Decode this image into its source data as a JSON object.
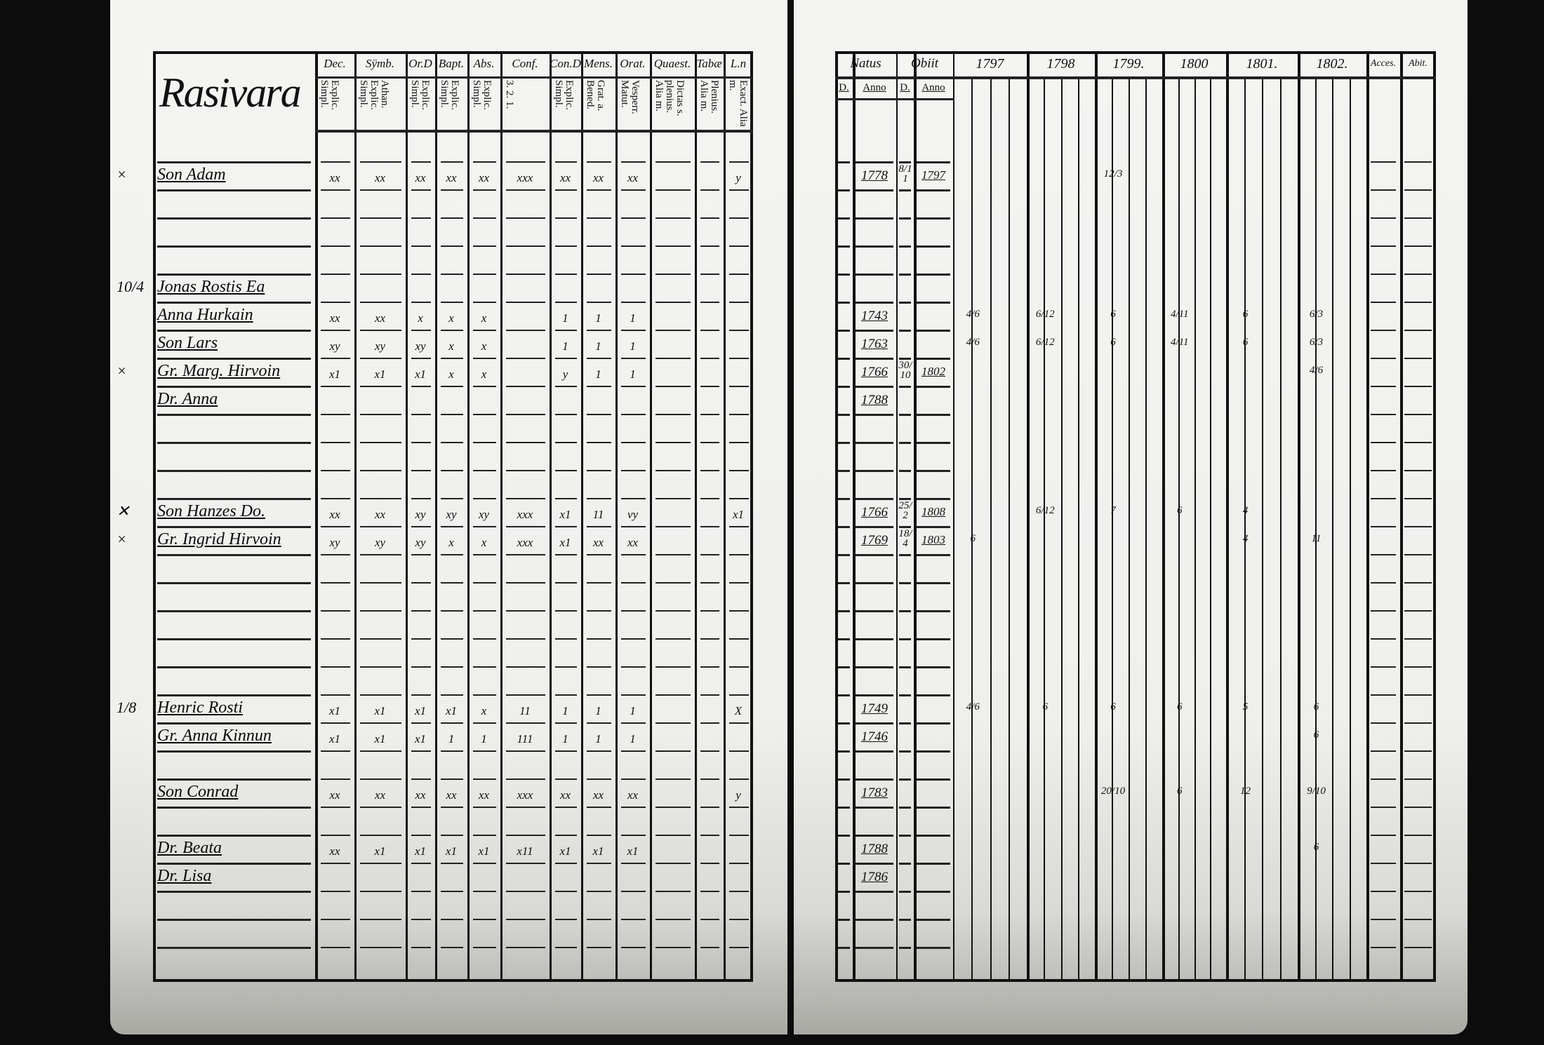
{
  "left_page": {
    "title": "Rasivara",
    "columns": [
      {
        "head": "Dec.",
        "sub": "Explic. Simpl."
      },
      {
        "head": "Sÿmb.",
        "sub": "Athan. Explic. Simpl."
      },
      {
        "head": "Or.D",
        "sub": "Explic. Simpl."
      },
      {
        "head": "Bapt.",
        "sub": "Explic. Simpl."
      },
      {
        "head": "Abs.",
        "sub": "Explic. Simpl."
      },
      {
        "head": "Conf.",
        "sub": "3. 2. 1."
      },
      {
        "head": "Con.D",
        "sub": "Explic. Simpl."
      },
      {
        "head": "Mens.",
        "sub": "Grat. a. Bened."
      },
      {
        "head": "Orat.",
        "sub": "Vesperr. Matut."
      },
      {
        "head": "Quaest.",
        "sub": "Dictas s. plenius. Alia m."
      },
      {
        "head": "Tabæ",
        "sub": "Plenius. Alia m."
      },
      {
        "head": "L.n",
        "sub": "Exact. Alia m."
      }
    ],
    "persons": [
      {
        "margin": "×",
        "name": "Son Adam",
        "marks": [
          "xx",
          "xx",
          "xx",
          "xx",
          "xx",
          "xxx",
          "xx",
          "xx",
          "xx",
          "",
          "",
          "y"
        ]
      },
      {
        "margin": "10/4",
        "name": "Jonas Rostis Ea",
        "marks": [
          "",
          "",
          "",
          "",
          "",
          "",
          "",
          "",
          "",
          "",
          "",
          ""
        ]
      },
      {
        "margin": "",
        "name": "Anna Hurkain",
        "marks": [
          "xx",
          "xx",
          "x",
          "x",
          "x",
          "",
          "1",
          "1",
          "1",
          "",
          "",
          ""
        ]
      },
      {
        "margin": "",
        "name": "Son Lars",
        "marks": [
          "xy",
          "xy",
          "xy",
          "x",
          "x",
          "",
          "1",
          "1",
          "1",
          "",
          "",
          ""
        ]
      },
      {
        "margin": "×",
        "name": "Gr. Marg. Hirvoin",
        "marks": [
          "x1",
          "x1",
          "x1",
          "x",
          "x",
          "",
          "y",
          "1",
          "1",
          "",
          "",
          ""
        ]
      },
      {
        "margin": "",
        "name": "Dr. Anna",
        "marks": [
          "",
          "",
          "",
          "",
          "",
          "",
          "",
          "",
          "",
          "",
          "",
          ""
        ]
      },
      {
        "margin": "✕",
        "name": "Son Hanzes Do.",
        "marks": [
          "xx",
          "xx",
          "xy",
          "xy",
          "xy",
          "xxx",
          "x1",
          "11",
          "vy",
          "",
          "",
          "x1"
        ]
      },
      {
        "margin": "×",
        "name": "Gr. Ingrid Hirvoin",
        "marks": [
          "xy",
          "xy",
          "xy",
          "x",
          "x",
          "xxx",
          "x1",
          "xx",
          "xx",
          "",
          "",
          ""
        ]
      },
      {
        "margin": "1/8",
        "name": "Henric Rosti",
        "marks": [
          "x1",
          "x1",
          "x1",
          "x1",
          "x",
          "11",
          "1",
          "1",
          "1",
          "",
          "",
          "X"
        ]
      },
      {
        "margin": "",
        "name": "Gr. Anna Kinnun",
        "marks": [
          "x1",
          "x1",
          "x1",
          "1",
          "1",
          "111",
          "1",
          "1",
          "1",
          "",
          "",
          ""
        ]
      },
      {
        "margin": "",
        "name": "Son Conrad",
        "marks": [
          "xx",
          "xx",
          "xx",
          "xx",
          "xx",
          "xxx",
          "xx",
          "xx",
          "xx",
          "",
          "",
          "y"
        ]
      },
      {
        "margin": "",
        "name": "Dr. Beata",
        "marks": [
          "xx",
          "x1",
          "x1",
          "x1",
          "x1",
          "x11",
          "x1",
          "x1",
          "x1",
          "",
          "",
          ""
        ]
      },
      {
        "margin": "",
        "name": "Dr. Lisa",
        "marks": [
          "",
          "",
          "",
          "",
          "",
          "",
          "",
          "",
          "",
          "",
          "",
          ""
        ]
      }
    ]
  },
  "right_page": {
    "columns": [
      {
        "head": "Natus",
        "subs": [
          "D.",
          "Anno"
        ]
      },
      {
        "head": "Obiit",
        "subs": [
          "D.",
          "Anno"
        ]
      },
      {
        "head": "1797",
        "subs": []
      },
      {
        "head": "1798",
        "subs": []
      },
      {
        "head": "1799.",
        "subs": []
      },
      {
        "head": "1800",
        "subs": []
      },
      {
        "head": "1801.",
        "subs": []
      },
      {
        "head": "1802.",
        "subs": []
      },
      {
        "head": "Acces.",
        "subs": []
      },
      {
        "head": "Abit.",
        "subs": []
      }
    ],
    "rows": [
      {
        "natus_anno": "1778",
        "obiit_d": "8/11",
        "obiit_anno": "1797",
        "years": [
          "",
          "",
          "12/3",
          "",
          "",
          ""
        ]
      },
      {
        "natus_anno": "",
        "obiit_d": "",
        "obiit_anno": "",
        "years": [
          "",
          "",
          "",
          "",
          "",
          ""
        ]
      },
      {
        "natus_anno": "1743",
        "obiit_d": "",
        "obiit_anno": "",
        "years": [
          "4/6",
          "6/12",
          "6",
          "4/11",
          "6",
          "6/3"
        ]
      },
      {
        "natus_anno": "1763",
        "obiit_d": "",
        "obiit_anno": "",
        "years": [
          "4/6",
          "6/12",
          "6",
          "4/11",
          "6",
          "6/3"
        ]
      },
      {
        "natus_anno": "1766",
        "obiit_d": "30/10",
        "obiit_anno": "1802",
        "years": [
          "",
          "",
          "",
          "",
          "",
          "4/6"
        ]
      },
      {
        "natus_anno": "1788",
        "obiit_d": "",
        "obiit_anno": "",
        "years": [
          "",
          "",
          "",
          "",
          "",
          ""
        ]
      },
      {
        "natus_anno": "1766",
        "obiit_d": "25/2",
        "obiit_anno": "1808",
        "years": [
          "",
          "6/12",
          "7",
          "6",
          "4",
          ""
        ]
      },
      {
        "natus_anno": "1769",
        "obiit_d": "18/4",
        "obiit_anno": "1803",
        "years": [
          "6",
          "",
          "",
          "",
          "4",
          "11"
        ]
      },
      {
        "natus_anno": "1749",
        "obiit_d": "",
        "obiit_anno": "",
        "years": [
          "4/6",
          "6",
          "6",
          "6",
          "5",
          "6"
        ]
      },
      {
        "natus_anno": "1746",
        "obiit_d": "",
        "obiit_anno": "",
        "years": [
          "",
          "",
          "",
          "",
          "",
          "6"
        ]
      },
      {
        "natus_anno": "1783",
        "obiit_d": "",
        "obiit_anno": "",
        "years": [
          "",
          "",
          "20/10",
          "6",
          "12",
          "9/10"
        ]
      },
      {
        "natus_anno": "1788",
        "obiit_d": "",
        "obiit_anno": "",
        "years": [
          "",
          "",
          "",
          "",
          "",
          "6"
        ]
      },
      {
        "natus_anno": "1786",
        "obiit_d": "",
        "obiit_anno": "",
        "years": [
          "",
          "",
          "",
          "",
          "",
          ""
        ]
      }
    ]
  }
}
